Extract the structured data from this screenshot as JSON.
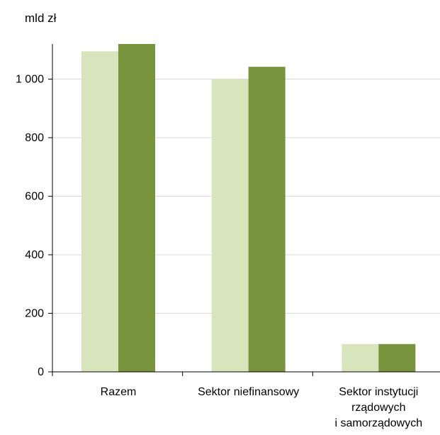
{
  "chart_data": {
    "type": "bar",
    "unit_label": "mld zł",
    "categories": [
      [
        "Razem"
      ],
      [
        "Sektor niefinansowy"
      ],
      [
        "Sektor instytucji",
        "rządowych",
        "i samorządowych"
      ]
    ],
    "series": [
      {
        "color": "#d8e4bc",
        "values": [
          1095,
          1000,
          95
        ]
      },
      {
        "color": "#77933c",
        "values": [
          1120,
          1042,
          95
        ]
      }
    ],
    "ylim": [
      0,
      1120
    ],
    "yticks": [
      0,
      200,
      400,
      600,
      800,
      1000
    ],
    "ytick_labels": [
      "0",
      "200",
      "400",
      "600",
      "800",
      "1 000"
    ],
    "grid": true,
    "gridline_color": "#d9d9d9",
    "axis_color": "#000000",
    "legend": "none"
  }
}
